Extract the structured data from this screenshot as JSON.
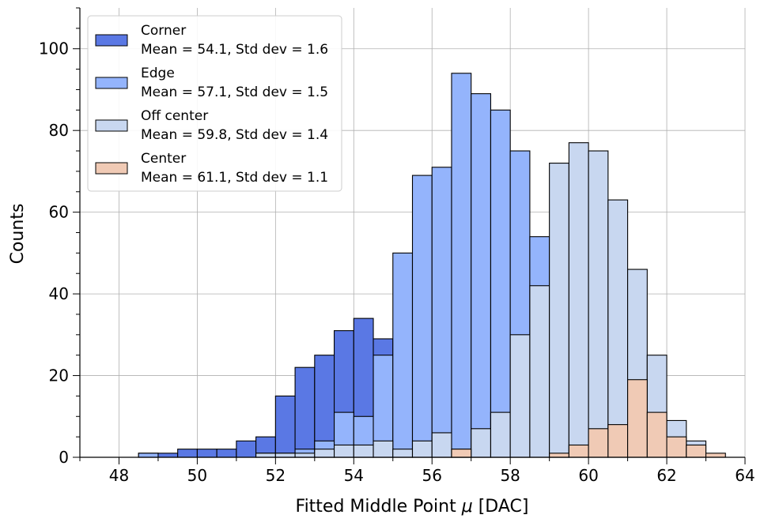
{
  "chart_data": {
    "type": "bar",
    "subtype": "overlaid-histogram",
    "title": "",
    "xlabel_main": "Fitted Middle Point ",
    "xlabel_symbol": "μ",
    "xlabel_unit": " [DAC]",
    "ylabel": "Counts",
    "xlim": [
      47,
      64
    ],
    "ylim": [
      0,
      110
    ],
    "x_major_ticks": [
      48,
      50,
      52,
      54,
      56,
      58,
      60,
      62,
      64
    ],
    "y_major_ticks": [
      0,
      20,
      40,
      60,
      80,
      100
    ],
    "x_tick_labels": [
      "48",
      "50",
      "52",
      "54",
      "56",
      "58",
      "60",
      "62",
      "64"
    ],
    "y_tick_labels": [
      "0",
      "20",
      "40",
      "60",
      "80",
      "100"
    ],
    "x_minor_step": 1,
    "y_minor_step": 5,
    "grid": true,
    "legend_position": "top-left",
    "bin_width": 0.5,
    "series": [
      {
        "name": "Corner",
        "stats": "Mean = 54.1, Std dev = 1.6",
        "color": "#5a78e4",
        "bins_left": [
          48.5,
          49.0,
          49.5,
          50.0,
          50.5,
          51.0,
          51.5,
          52.0,
          52.5,
          53.0,
          53.5,
          54.0,
          54.5,
          55.0,
          55.5,
          56.0,
          56.5,
          57.0,
          57.5,
          58.0,
          58.5
        ],
        "values": [
          1,
          1,
          2,
          2,
          2,
          4,
          5,
          15,
          22,
          25,
          31,
          34,
          29,
          4,
          3,
          2,
          1,
          1,
          1,
          1,
          0
        ]
      },
      {
        "name": "Edge",
        "stats": "Mean = 57.1, Std dev = 1.5",
        "color": "#94b4fc",
        "bins_left": [
          48.5,
          49.0,
          49.5,
          50.0,
          50.5,
          51.0,
          51.5,
          52.0,
          52.5,
          53.0,
          53.5,
          54.0,
          54.5,
          55.0,
          55.5,
          56.0,
          56.5,
          57.0,
          57.5,
          58.0,
          58.5,
          59.0
        ],
        "values": [
          1,
          0,
          0,
          0,
          0,
          0,
          1,
          1,
          2,
          4,
          11,
          10,
          25,
          50,
          69,
          71,
          94,
          89,
          85,
          75,
          54,
          5
        ]
      },
      {
        "name": "Off center",
        "stats": "Mean = 59.8, Std dev = 1.4",
        "color": "#c8d7f0",
        "bins_left": [
          51.5,
          52.0,
          52.5,
          53.0,
          53.5,
          54.0,
          54.5,
          55.0,
          55.5,
          56.0,
          56.5,
          57.0,
          57.5,
          58.0,
          58.5,
          59.0,
          59.5,
          60.0,
          60.5,
          61.0,
          61.5,
          62.0,
          62.5
        ],
        "values": [
          1,
          1,
          1,
          2,
          3,
          3,
          4,
          2,
          4,
          6,
          2,
          7,
          11,
          30,
          42,
          72,
          77,
          75,
          63,
          46,
          25,
          9,
          4
        ]
      },
      {
        "name": "Center",
        "stats": "Mean = 61.1, Std dev = 1.1",
        "color": "#f0cab5",
        "bins_left": [
          56.5,
          57.0,
          57.5,
          58.0,
          58.5,
          59.0,
          59.5,
          60.0,
          60.5,
          61.0,
          61.5,
          62.0,
          62.5,
          63.0
        ],
        "values": [
          2,
          0,
          0,
          0,
          0,
          1,
          3,
          7,
          8,
          19,
          11,
          5,
          3,
          1
        ]
      }
    ]
  }
}
